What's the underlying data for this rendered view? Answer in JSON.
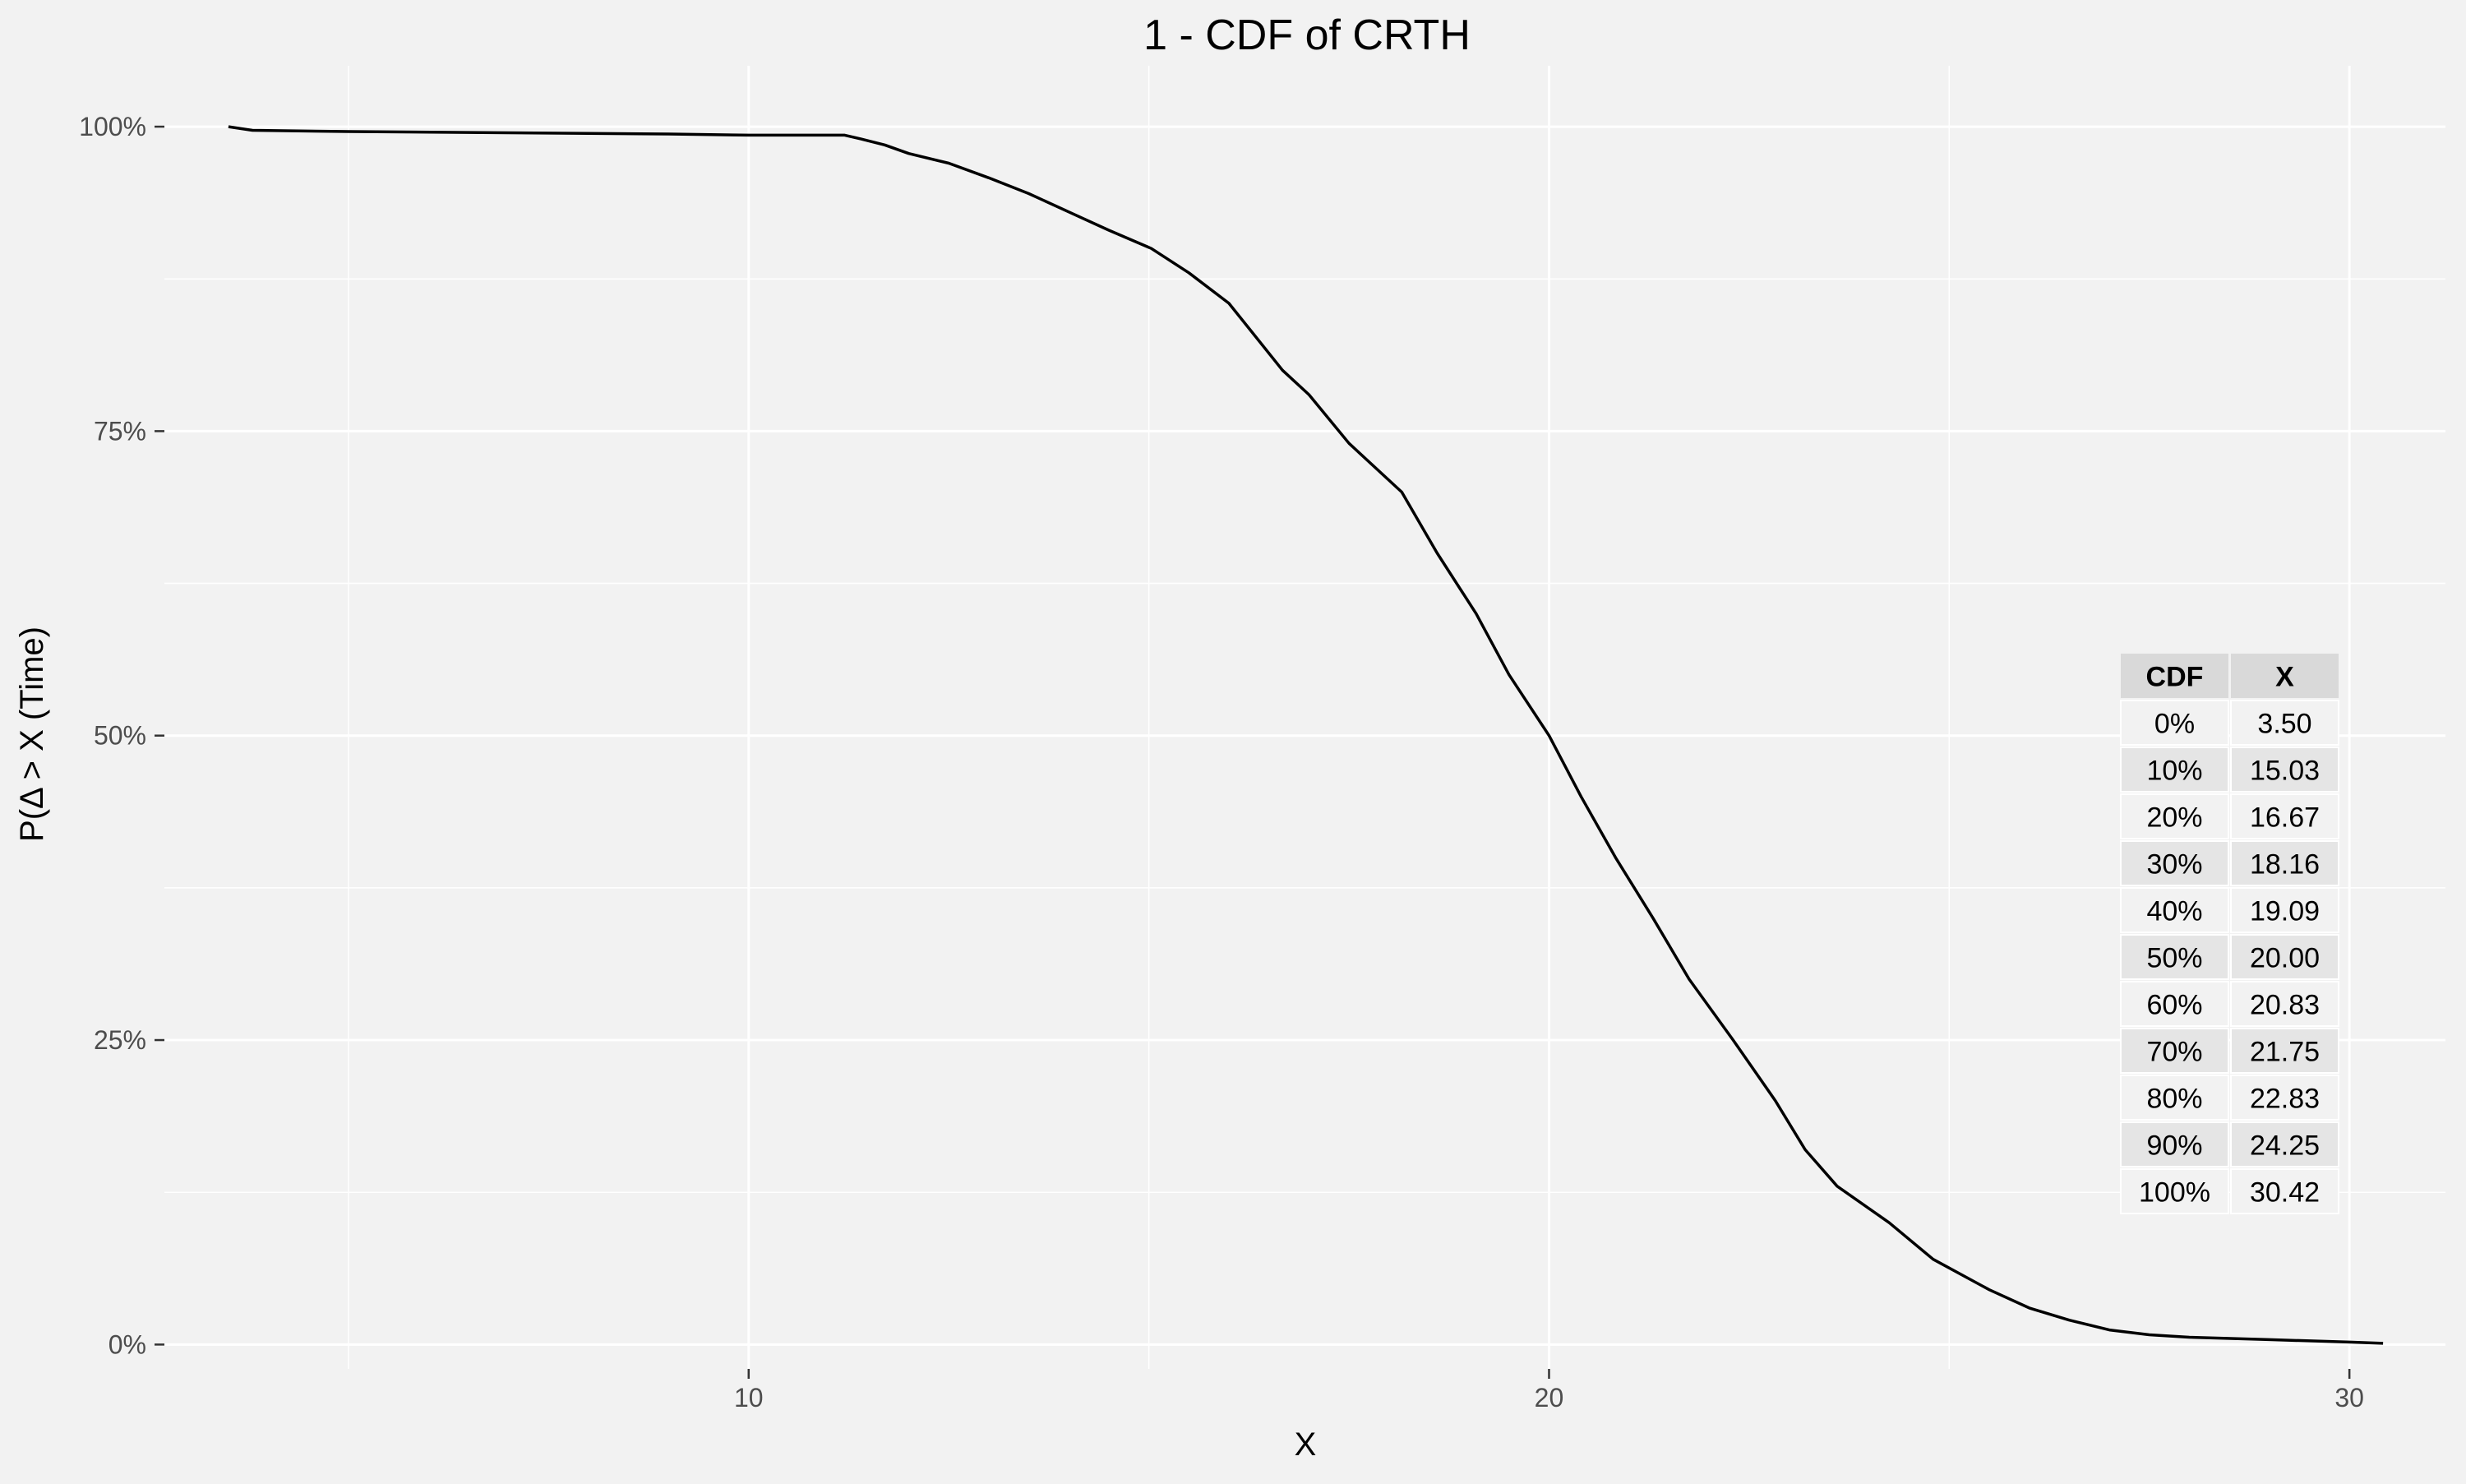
{
  "chart_data": {
    "type": "line",
    "title": "1 - CDF of CRTH",
    "xlabel": "X",
    "ylabel": "P(Δ > X (Time)",
    "xlim": [
      2.7,
      31.2
    ],
    "ylim": [
      -0.02,
      1.05
    ],
    "x_ticks": [
      10,
      20,
      30
    ],
    "x_tick_labels": [
      "10",
      "20",
      "30"
    ],
    "y_ticks": [
      0,
      0.25,
      0.5,
      0.75,
      1.0
    ],
    "y_tick_labels": [
      "0%",
      "25%",
      "50%",
      "75%",
      "100%"
    ],
    "grid": true,
    "series": [
      {
        "x": [
          3.5,
          3.8,
          5.0,
          7.0,
          9.0,
          10.0,
          11.0,
          11.2,
          11.4,
          11.7,
          12.0,
          12.5,
          13.0,
          13.5,
          14.0,
          14.5,
          15.03,
          15.5,
          16.0,
          16.67,
          17.0,
          17.5,
          18.16,
          18.6,
          19.09,
          19.5,
          20.0,
          20.4,
          20.83,
          21.3,
          21.75,
          22.3,
          22.83,
          23.2,
          23.6,
          24.25,
          24.8,
          25.5,
          26.0,
          26.5,
          27.0,
          27.5,
          28.0,
          29.0,
          30.0,
          30.42
        ],
        "y": [
          1.0,
          0.997,
          0.996,
          0.995,
          0.994,
          0.993,
          0.993,
          0.993,
          0.99,
          0.985,
          0.978,
          0.97,
          0.958,
          0.945,
          0.93,
          0.915,
          0.9,
          0.88,
          0.855,
          0.8,
          0.78,
          0.74,
          0.7,
          0.65,
          0.6,
          0.55,
          0.5,
          0.45,
          0.4,
          0.35,
          0.3,
          0.25,
          0.2,
          0.16,
          0.13,
          0.1,
          0.07,
          0.045,
          0.03,
          0.02,
          0.012,
          0.008,
          0.006,
          0.004,
          0.002,
          0.001
        ]
      }
    ],
    "table": {
      "headers": [
        "CDF",
        "X"
      ],
      "rows": [
        [
          "0%",
          "3.50"
        ],
        [
          "10%",
          "15.03"
        ],
        [
          "20%",
          "16.67"
        ],
        [
          "30%",
          "18.16"
        ],
        [
          "40%",
          "19.09"
        ],
        [
          "50%",
          "20.00"
        ],
        [
          "60%",
          "20.83"
        ],
        [
          "70%",
          "21.75"
        ],
        [
          "80%",
          "22.83"
        ],
        [
          "90%",
          "24.25"
        ],
        [
          "100%",
          "30.42"
        ]
      ]
    }
  },
  "colors": {
    "background": "#f2f2f2",
    "grid_major": "#ffffff",
    "line": "#000000",
    "tick_text": "#4d4d4d",
    "table_header": "#d9d9d9",
    "table_row_odd": "#f2f2f2",
    "table_row_even": "#e5e5e5"
  }
}
